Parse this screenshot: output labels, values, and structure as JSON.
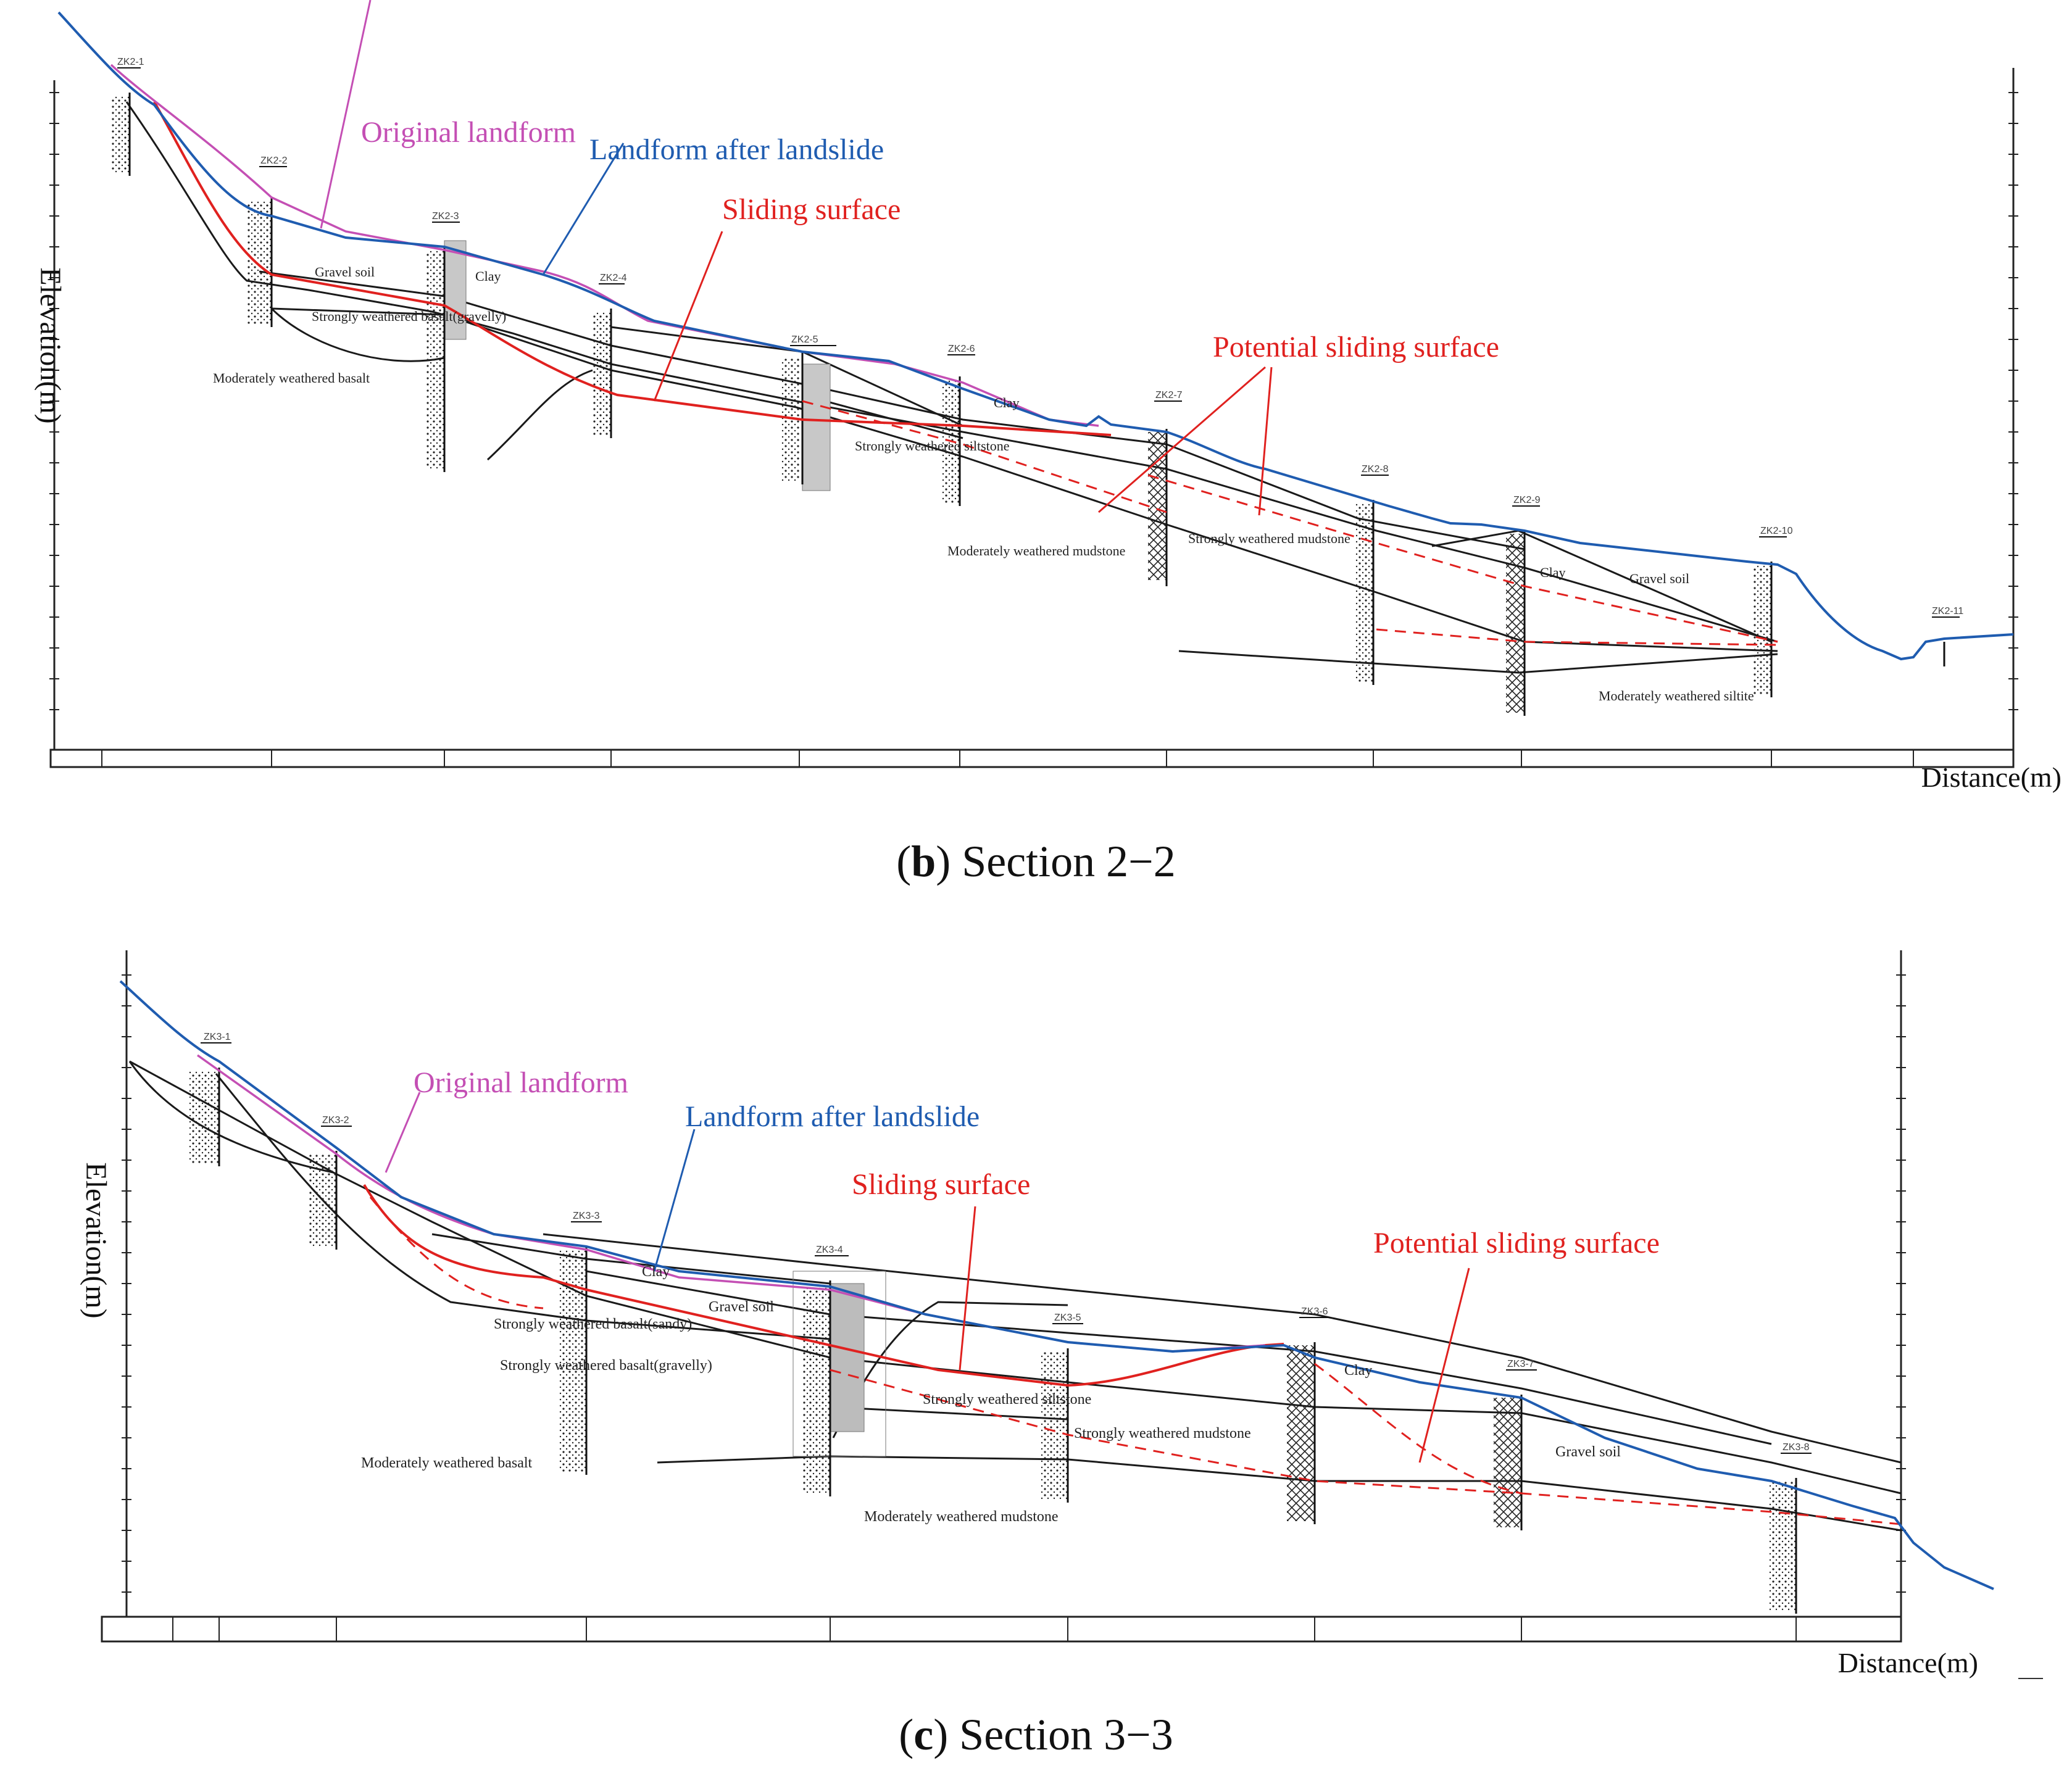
{
  "panels": [
    {
      "id": "b",
      "caption_letter": "b",
      "caption_text": "Section 2−2",
      "labels": {
        "ylabel": "Elevation(m)",
        "xlabel": "Distance(m)",
        "original": "Original landform",
        "after": "Landform after landslide",
        "sliding": "Sliding surface",
        "potential": "Potential sliding surface"
      },
      "strata": [
        "Gravel soil",
        "Clay",
        "Strongly weathered basalt(gravelly)",
        "Moderately weathered basalt",
        "Strongly weathered siltstone",
        "Clay",
        "Moderately weathered mudstone",
        "Strongly weathered mudstone",
        "Clay",
        "Gravel soil",
        "Moderately weathered siltite"
      ],
      "boreholes": [
        "ZK2-1",
        "ZK2-2",
        "ZK2-3",
        "ZK2-4",
        "ZK2-5",
        "ZK2-6",
        "ZK2-7",
        "ZK2-8",
        "ZK2-9",
        "ZK2-10",
        "ZK2-11"
      ]
    },
    {
      "id": "c",
      "caption_letter": "c",
      "caption_text": "Section 3−3",
      "labels": {
        "ylabel": "Elevation(m)",
        "xlabel": "Distance(m)",
        "original": "Original landform",
        "after": "Landform after landslide",
        "sliding": "Sliding  surface",
        "potential": "Potential sliding surface"
      },
      "strata": [
        "Clay",
        "Gravel soil",
        "Strongly weathered basalt(sandy)",
        "Strongly weathered basalt(gravelly)",
        "Strongly weathered siltstone",
        "Strongly weathered mudstone",
        "Moderately weathered basalt",
        "Moderately weathered mudstone",
        "Clay",
        "Gravel soil"
      ],
      "boreholes": [
        "ZK3-1",
        "ZK3-2",
        "ZK3-3",
        "ZK3-4",
        "ZK3-5",
        "ZK3-6",
        "ZK3-7",
        "ZK3-8"
      ]
    }
  ],
  "colors": {
    "original": "#c44fb4",
    "after": "#1f5cb0",
    "sliding": "#e0211f",
    "strata": "#1a1a1a"
  }
}
